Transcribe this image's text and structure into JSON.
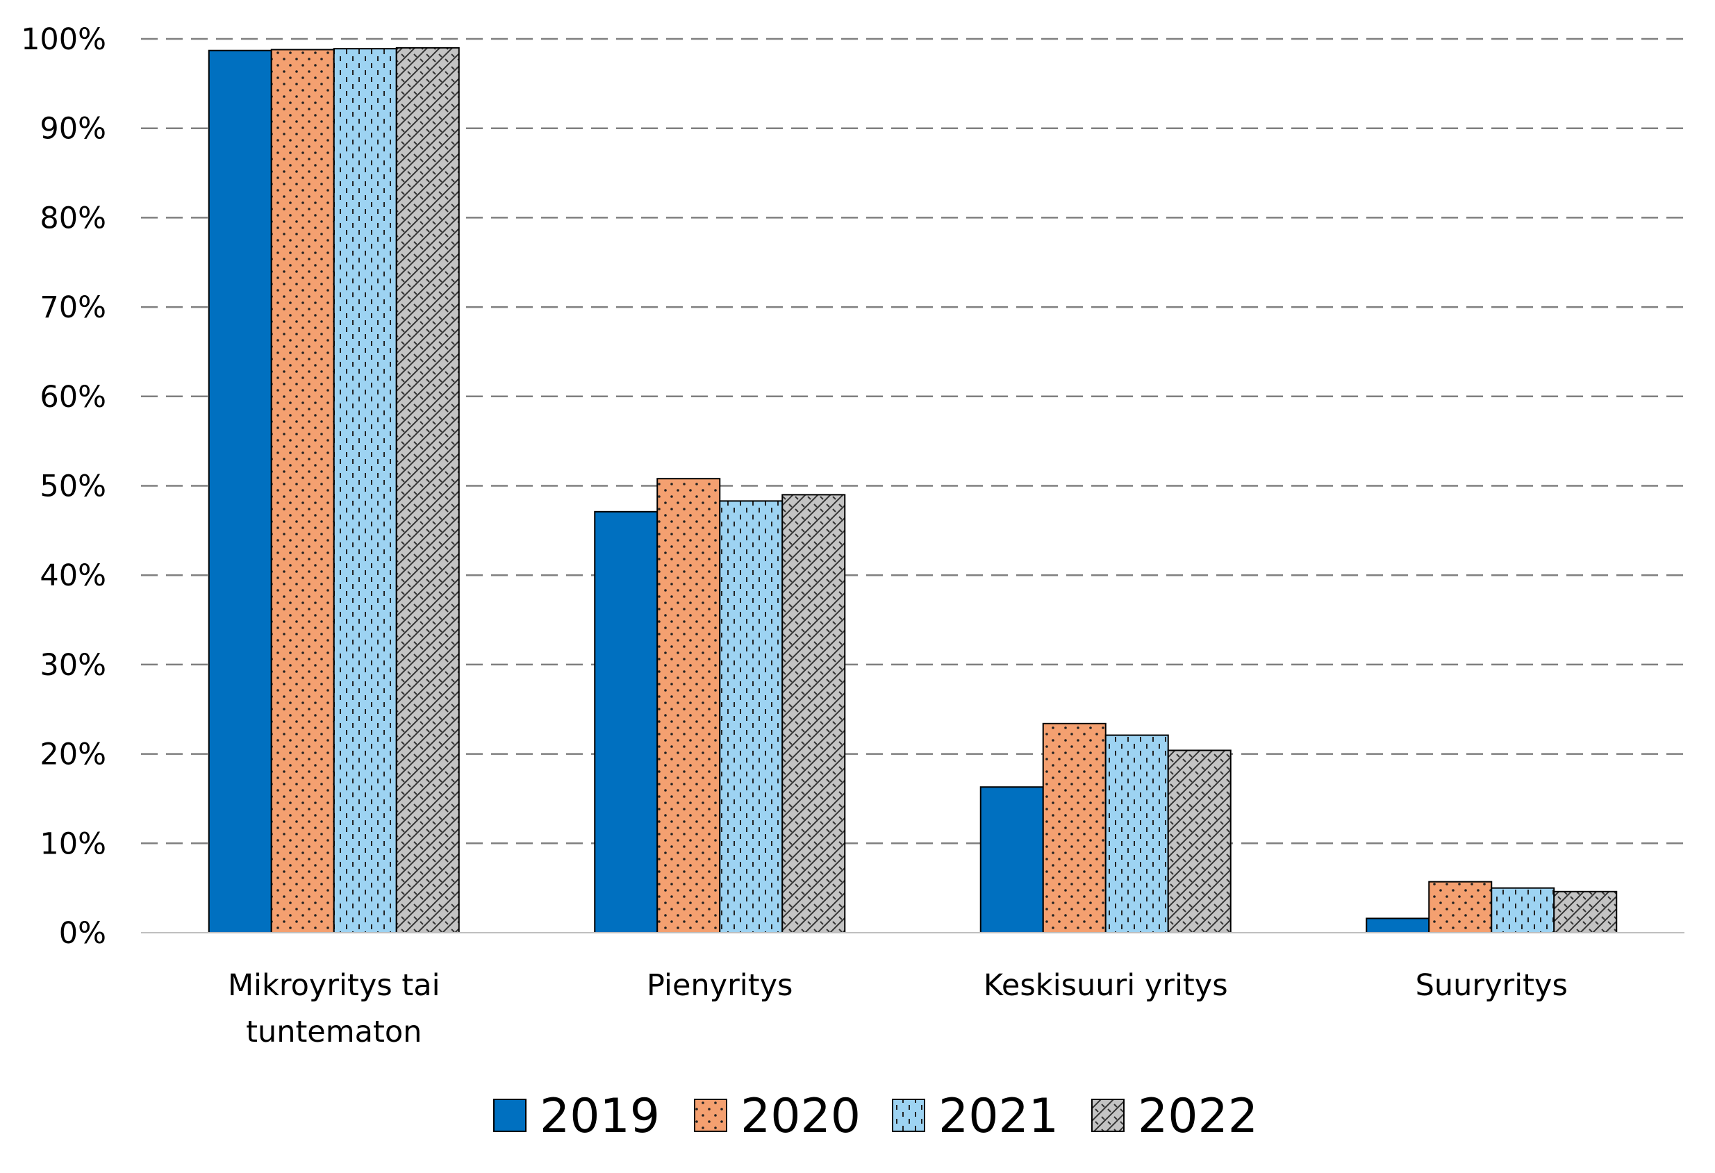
{
  "chart_data": {
    "type": "bar",
    "title": "",
    "xlabel": "",
    "ylabel": "",
    "ylim": [
      0,
      100
    ],
    "y_tick_values": [
      0,
      10,
      20,
      30,
      40,
      50,
      60,
      70,
      80,
      90,
      100
    ],
    "y_tick_labels": [
      "0%",
      "10%",
      "20%",
      "30%",
      "40%",
      "50%",
      "60%",
      "70%",
      "80%",
      "90%",
      "100%"
    ],
    "grid": "horizontal-dashed",
    "legend_position": "bottom-center",
    "categories": [
      [
        "Mikroyritys tai",
        "tuntematon"
      ],
      [
        "Pienyritys"
      ],
      [
        "Keskisuuri yritys"
      ],
      [
        "Suuryritys"
      ]
    ],
    "series": [
      {
        "name": "2019",
        "color": "#0070C0",
        "pattern": "solid",
        "values": [
          98.7,
          47.1,
          16.3,
          1.6
        ]
      },
      {
        "name": "2020",
        "color": "#F4A070",
        "pattern": "dots",
        "values": [
          98.8,
          50.8,
          23.4,
          5.7
        ]
      },
      {
        "name": "2021",
        "color": "#9DD3F2",
        "pattern": "dashes",
        "values": [
          98.9,
          48.3,
          22.1,
          5.0
        ]
      },
      {
        "name": "2022",
        "color": "#C4C4C4",
        "pattern": "weave",
        "values": [
          99.0,
          49.0,
          20.4,
          4.6
        ]
      }
    ]
  }
}
